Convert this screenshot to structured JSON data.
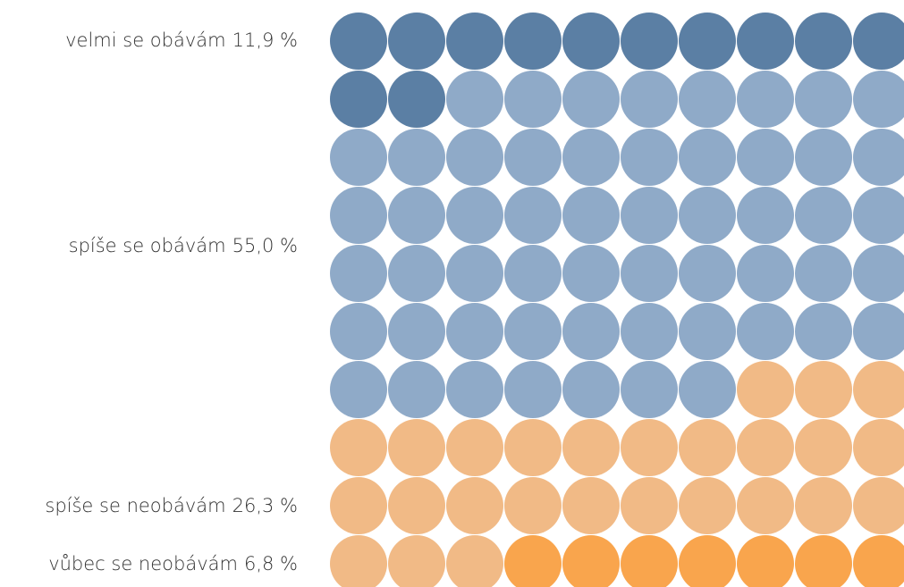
{
  "chart_data": {
    "type": "waffle",
    "categories": [
      "velmi se obávám",
      "spíše se obávám",
      "spíše se neobávám",
      "vůbec se neobávám"
    ],
    "values": [
      11.9,
      55.0,
      26.3,
      6.8
    ],
    "value_labels": [
      "11,9 %",
      "55,0 %",
      "26,3 %",
      "6,8 %"
    ],
    "colors": [
      "#5b7fa4",
      "#8faac8",
      "#f1ba86",
      "#f9a54d"
    ]
  }
}
